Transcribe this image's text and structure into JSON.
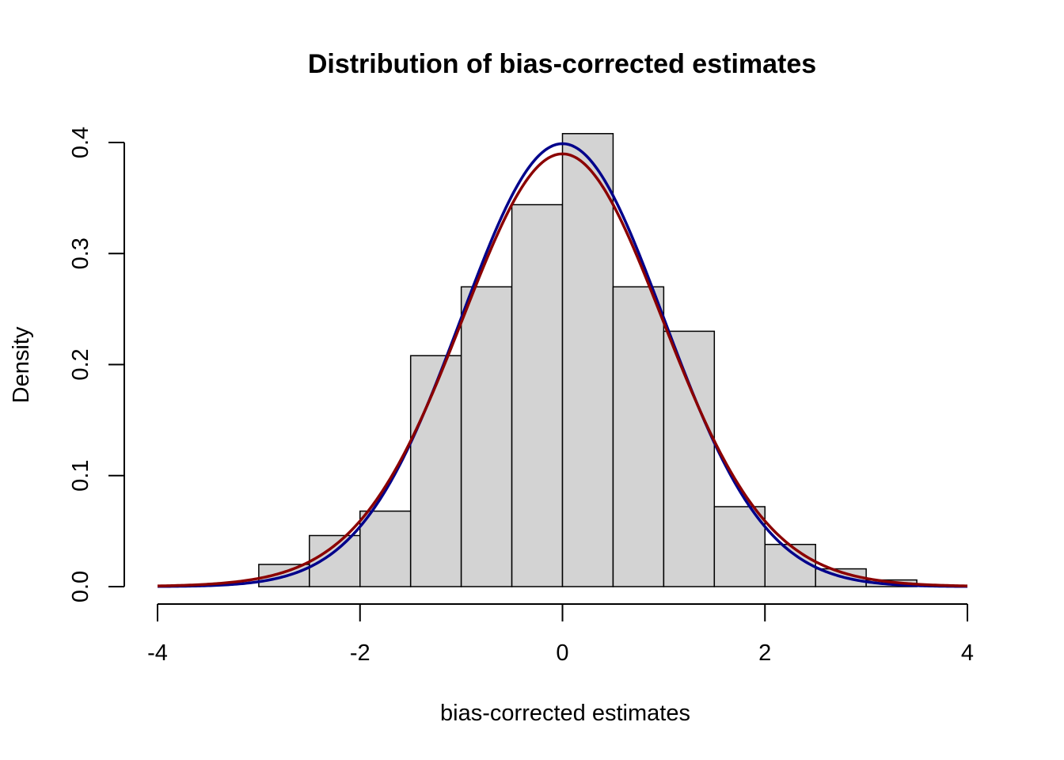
{
  "chart_data": {
    "type": "bar",
    "title": "Distribution of bias-corrected estimates",
    "xlabel": "bias-corrected estimates",
    "ylabel": "Density",
    "xlim": [
      -4,
      4
    ],
    "ylim": [
      0,
      0.4
    ],
    "x_ticks": [
      "-4",
      "-2",
      "0",
      "2",
      "4"
    ],
    "y_ticks": [
      "0.0",
      "0.1",
      "0.2",
      "0.3",
      "0.4"
    ],
    "grid": false,
    "histogram": {
      "bin_edges": [
        -3.0,
        -2.5,
        -2.0,
        -1.5,
        -1.0,
        -0.5,
        0.0,
        0.5,
        1.0,
        1.5,
        2.0,
        2.5,
        3.0,
        3.5
      ],
      "density": [
        0.02,
        0.046,
        0.068,
        0.208,
        0.27,
        0.344,
        0.408,
        0.27,
        0.23,
        0.072,
        0.038,
        0.016,
        0.006
      ],
      "fill": "#d3d3d3",
      "stroke": "#000000"
    },
    "series": [
      {
        "type": "line",
        "color": "#00008b",
        "mean": 0.0,
        "sd": 1.0
      },
      {
        "type": "line",
        "color": "#8b0000",
        "mean": 0.0,
        "sd": 1.015,
        "df": 30
      }
    ]
  }
}
